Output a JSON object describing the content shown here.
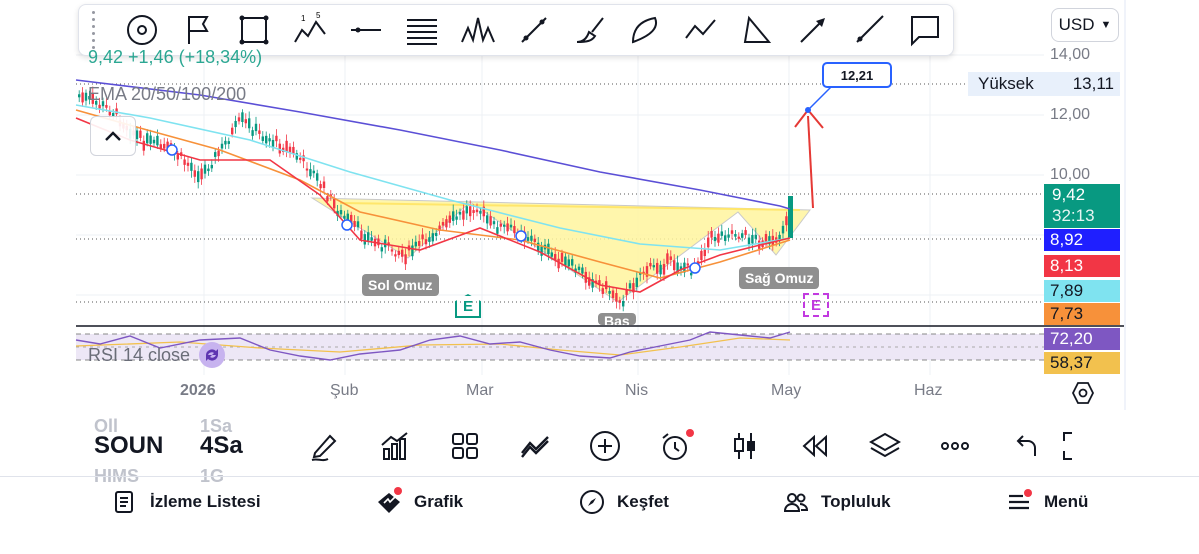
{
  "toolbar": {
    "tools": [
      "circle-target-icon",
      "flag-icon",
      "rectangle-icon",
      "wave-12345-icon",
      "horizontal-line-icon",
      "fib-lines-icon",
      "head-shoulders-pattern-icon",
      "trend-line-icon",
      "brush-icon",
      "arc-icon",
      "zigzag-icon",
      "triangle-icon",
      "arrow-icon",
      "ray-icon",
      "callout-icon"
    ],
    "wave_label_1": "1",
    "wave_label_5": "5"
  },
  "currency": {
    "label": "USD"
  },
  "symbol_header": {
    "change_text": "9,42 +1,46 (+18,34%)"
  },
  "indicators": {
    "ema_label": "EMA 20/50/100/200",
    "rsi_label": "RSI 14 close"
  },
  "price_axis": {
    "ticks": [
      "14,00",
      "12,00",
      "10,00"
    ],
    "high_label": "Yüksek",
    "high_value": "13,11",
    "last_price": "9,42",
    "countdown": "32:13",
    "ema_values": [
      {
        "value": "8,92",
        "color": "#1f1fff"
      },
      {
        "value": "8,13",
        "color": "#f23645"
      },
      {
        "value": "7,89",
        "color": "#7fe3f0"
      },
      {
        "value": "7,73",
        "color": "#f7913a"
      }
    ],
    "rsi_value": "72,20",
    "rsi_ma_value": "58,37"
  },
  "time_axis": {
    "labels": [
      "2026",
      "Şub",
      "Mar",
      "Nis",
      "May",
      "Haz"
    ]
  },
  "annotations": {
    "left_shoulder": "Sol Omuz",
    "right_shoulder": "Sağ Omuz",
    "head": "Baş",
    "target": "12,21",
    "earnings_badge": "E"
  },
  "colors": {
    "up": "#089981",
    "down": "#f23645",
    "ema20": "#f23645",
    "ema50": "#f7913a",
    "ema100": "#7fe3f0",
    "ema200": "#5b4fd6",
    "pattern_fill": "#fff59d",
    "rsi_line": "#7e57c2",
    "rsi_band": "#ede7f6",
    "rsi_ma": "#f2c14e",
    "accent": "#2962ff"
  },
  "bottom_bar": {
    "symbol": "SOUN",
    "timeframe": "4Sa",
    "ghost_above_symbol": "Oll",
    "ghost_below_symbol": "HIMS",
    "ghost_above_tf": "1Sa",
    "ghost_below_tf": "1G",
    "tools": [
      "draw-pen-icon",
      "indicators-icon",
      "layout-grid-icon",
      "compare-icon",
      "add-circle-icon",
      "alarm-icon",
      "candles-icon",
      "replay-icon",
      "layers-icon",
      "more-icon",
      "undo-icon",
      "fullscreen-icon"
    ]
  },
  "nav": {
    "watchlist": "İzleme Listesi",
    "chart": "Grafik",
    "explore": "Keşfet",
    "community": "Topluluk",
    "menu": "Menü"
  }
}
